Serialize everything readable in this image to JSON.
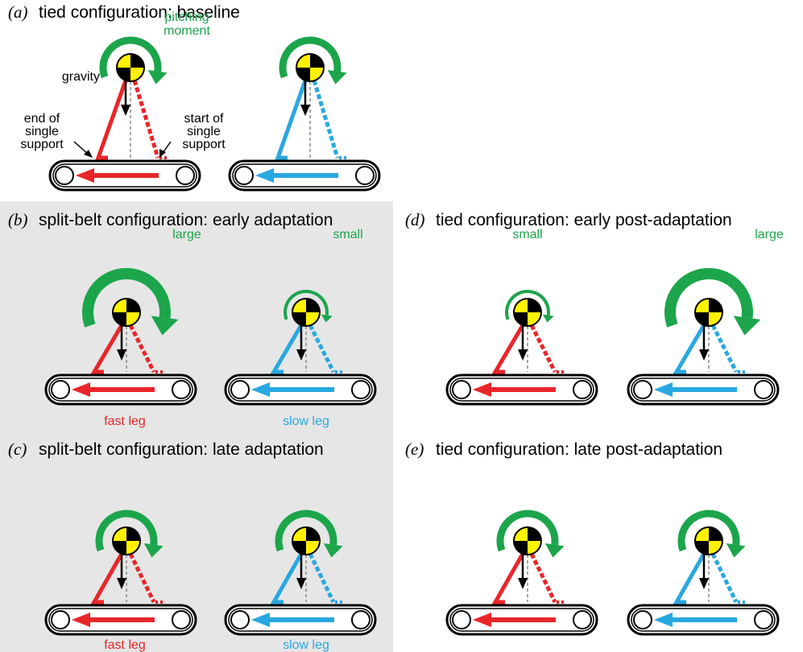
{
  "panels": {
    "a": {
      "label": "(a)",
      "title": "tied configuration: baseline",
      "pitching_moment": [
        "pitching",
        "moment"
      ],
      "gravity": "gravity",
      "end_of_single_support": [
        "end of",
        "single",
        "support"
      ],
      "start_of_single_support": [
        "start of",
        "single",
        "support"
      ]
    },
    "b": {
      "label": "(b)",
      "title": "split-belt configuration: early adaptation",
      "left_moment": "large",
      "right_moment": "small",
      "left_leg": "fast leg",
      "right_leg": "slow leg"
    },
    "c": {
      "label": "(c)",
      "title": "split-belt configuration: late adaptation",
      "left_leg": "fast leg",
      "right_leg": "slow leg"
    },
    "d": {
      "label": "(d)",
      "title": "tied configuration: early post-adaptation",
      "left_moment": "small",
      "right_moment": "large"
    },
    "e": {
      "label": "(e)",
      "title": "tied configuration: late post-adaptation"
    }
  }
}
